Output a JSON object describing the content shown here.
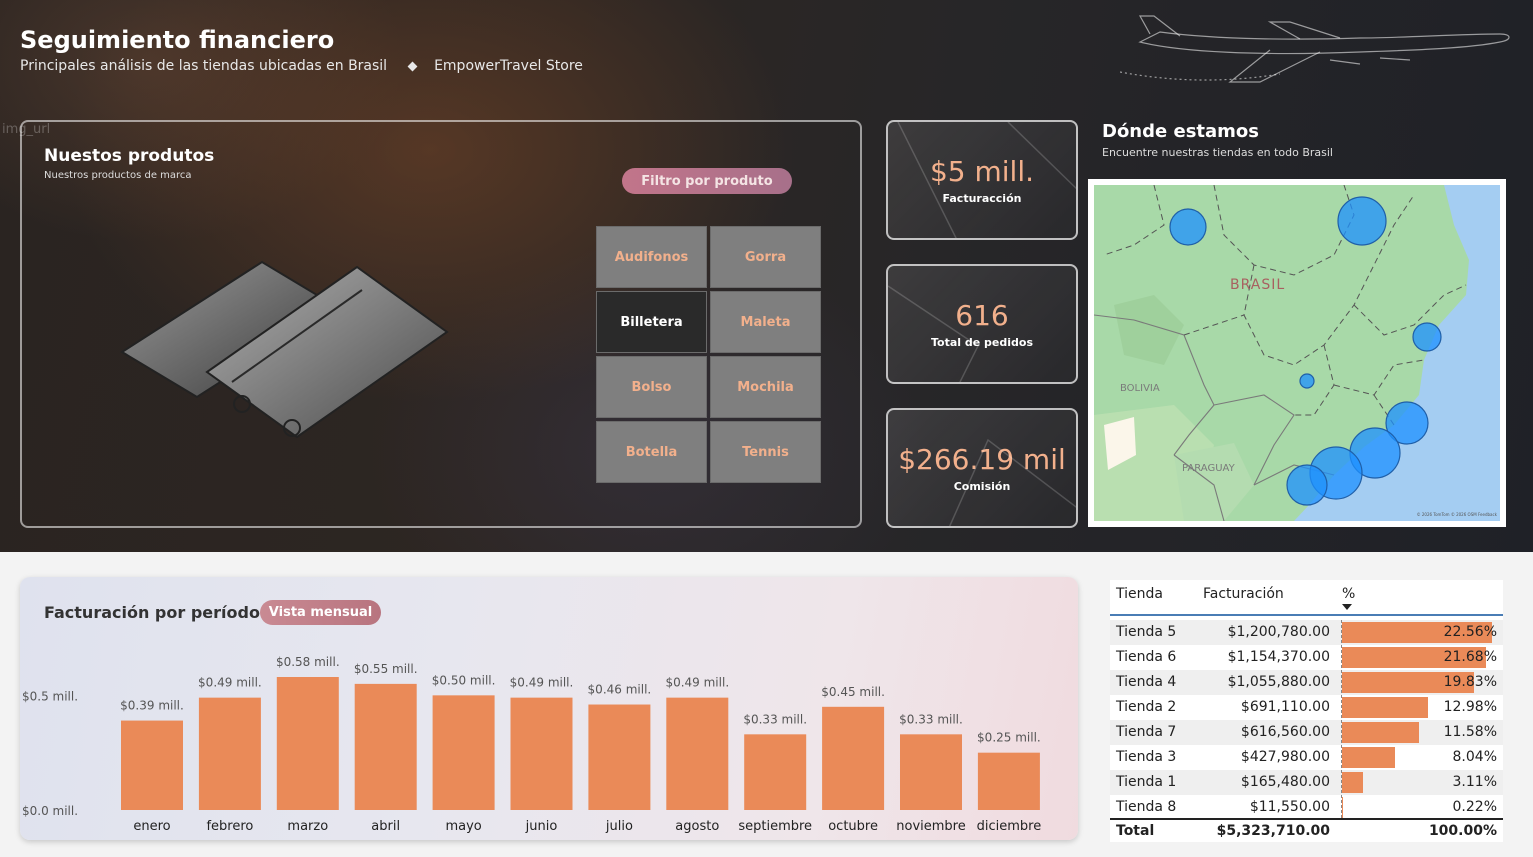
{
  "header": {
    "title": "Seguimiento financiero",
    "subtitle": "Principales análisis de las tiendas ubicadas en Brasil",
    "store": "EmpowerTravel Store",
    "img_label": "img_url"
  },
  "products": {
    "title": "Nuestos produtos",
    "subtitle": "Nuestros productos de marca",
    "filter_label": "Filtro por produto",
    "items": [
      {
        "label": "Audifonos",
        "selected": false
      },
      {
        "label": "Gorra",
        "selected": false
      },
      {
        "label": "Billetera",
        "selected": true
      },
      {
        "label": "Maleta",
        "selected": false
      },
      {
        "label": "Bolso",
        "selected": false
      },
      {
        "label": "Mochila",
        "selected": false
      },
      {
        "label": "Botella",
        "selected": false
      },
      {
        "label": "Tennis",
        "selected": false
      }
    ]
  },
  "kpis": [
    {
      "value": "$5 mill.",
      "label": "Facturacción"
    },
    {
      "value": "616",
      "label": "Total de pedidos"
    },
    {
      "value": "$266.19 mil",
      "label": "Comisión"
    }
  ],
  "map": {
    "title": "Dónde estamos",
    "subtitle": "Encuentre nuestras tiendas en todo Brasil",
    "labels": {
      "country": "BRASIL",
      "bolivia": "BOLIVIA",
      "paraguay": "PARAGUAY"
    },
    "attribution": "© 2026 TomTom  © 2026 OSM  Feedback"
  },
  "chart_section": {
    "title": "Facturación por período",
    "pill": "Vista mensual"
  },
  "chart_data": {
    "type": "bar",
    "title": "Facturación por período",
    "categories": [
      "enero",
      "febrero",
      "marzo",
      "abril",
      "mayo",
      "junio",
      "julio",
      "agosto",
      "septiembre",
      "octubre",
      "noviembre",
      "diciembre"
    ],
    "values": [
      0.39,
      0.49,
      0.58,
      0.55,
      0.5,
      0.49,
      0.46,
      0.49,
      0.33,
      0.45,
      0.33,
      0.25
    ],
    "data_labels": [
      "$0.39 mill.",
      "$0.49 mill.",
      "$0.58 mill.",
      "$0.55 mill.",
      "$0.50 mill.",
      "$0.49 mill.",
      "$0.46 mill.",
      "$0.49 mill.",
      "$0.33 mill.",
      "$0.45 mill.",
      "$0.33 mill.",
      "$0.25 mill."
    ],
    "y_ticks": [
      {
        "value": 0.0,
        "label": "$0.0 mill."
      },
      {
        "value": 0.5,
        "label": "$0.5 mill."
      }
    ],
    "ylim": [
      0,
      0.6
    ],
    "bar_color": "#ea8a58"
  },
  "table": {
    "headers": [
      "Tienda",
      "Facturación",
      "%"
    ],
    "rows": [
      {
        "tienda": "Tienda 5",
        "facturacion": "$1,200,780.00",
        "pct": "22.56%",
        "pct_value": 22.56
      },
      {
        "tienda": "Tienda 6",
        "facturacion": "$1,154,370.00",
        "pct": "21.68%",
        "pct_value": 21.68
      },
      {
        "tienda": "Tienda 4",
        "facturacion": "$1,055,880.00",
        "pct": "19.83%",
        "pct_value": 19.83
      },
      {
        "tienda": "Tienda 2",
        "facturacion": "$691,110.00",
        "pct": "12.98%",
        "pct_value": 12.98
      },
      {
        "tienda": "Tienda 7",
        "facturacion": "$616,560.00",
        "pct": "11.58%",
        "pct_value": 11.58
      },
      {
        "tienda": "Tienda 3",
        "facturacion": "$427,980.00",
        "pct": "8.04%",
        "pct_value": 8.04
      },
      {
        "tienda": "Tienda 1",
        "facturacion": "$165,480.00",
        "pct": "3.11%",
        "pct_value": 3.11
      },
      {
        "tienda": "Tienda 8",
        "facturacion": "$11,550.00",
        "pct": "0.22%",
        "pct_value": 0.22
      }
    ],
    "total": {
      "label": "Total",
      "facturacion": "$5,323,710.00",
      "pct": "100.00%"
    },
    "bar_color": "#ea8a58"
  }
}
